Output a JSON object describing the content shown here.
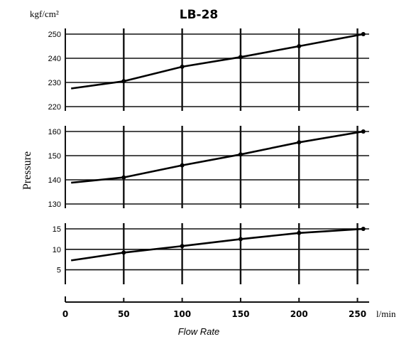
{
  "chart_data": {
    "title": "LB-28",
    "unit_top": "kgf/cm²",
    "ylabel": "Pressure",
    "xlabel": "Flow Rate",
    "x_unit": "l/min",
    "x_ticks": [
      0,
      50,
      100,
      150,
      200,
      250
    ],
    "xlim": [
      0,
      260
    ],
    "charts": [
      {
        "type": "line",
        "ylim": [
          220,
          250
        ],
        "y_ticks": [
          220,
          230,
          240,
          250
        ],
        "y_tick_labels": [
          "220",
          "230",
          "240",
          "250"
        ],
        "x": [
          5,
          50,
          100,
          150,
          200,
          255
        ],
        "values": [
          227.5,
          230.5,
          236.5,
          240.5,
          245,
          250
        ]
      },
      {
        "type": "line",
        "ylim": [
          130,
          160
        ],
        "y_ticks": [
          130,
          140,
          150,
          160
        ],
        "y_tick_labels": [
          "130",
          "140",
          "150",
          "160"
        ],
        "x": [
          5,
          50,
          100,
          150,
          200,
          255
        ],
        "values": [
          138.8,
          141,
          146,
          150.5,
          155.5,
          160
        ]
      },
      {
        "type": "line",
        "ylim": [
          2.5,
          15
        ],
        "y_ticks": [
          5,
          10,
          15
        ],
        "y_tick_labels": [
          "5",
          "10",
          "15"
        ],
        "x": [
          5,
          50,
          100,
          150,
          200,
          255
        ],
        "values": [
          7.3,
          9.2,
          10.8,
          12.5,
          14,
          15
        ]
      }
    ]
  }
}
